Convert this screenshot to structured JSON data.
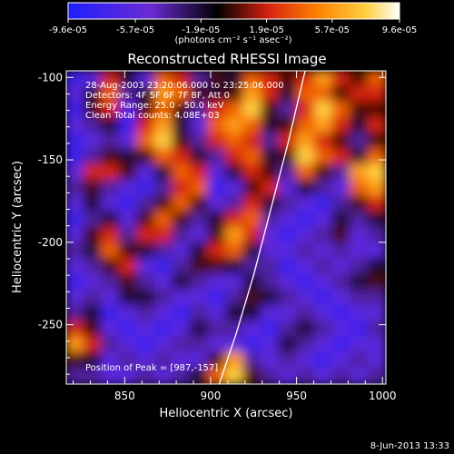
{
  "colorbar": {
    "tick_labels": [
      "-9.6e-05",
      "-5.7e-05",
      "-1.9e-05",
      "1.9e-05",
      "5.7e-05",
      "9.6e-05"
    ],
    "unit_label": "(photons cm⁻² s⁻¹ asec⁻²)"
  },
  "chart_data": {
    "type": "heatmap",
    "title": "Reconstructed RHESSI Image",
    "xlabel": "Heliocentric X (arcsec)",
    "ylabel": "Heliocentric Y (arcsec)",
    "xlim": [
      816,
      1002
    ],
    "ylim": [
      -286,
      -96
    ],
    "x_ticks": [
      850,
      900,
      950,
      1000
    ],
    "y_ticks": [
      -100,
      -150,
      -200,
      -250
    ],
    "value_range": [
      -9.6e-05,
      9.6e-05
    ],
    "colormap": "blue-purple-black-red-orange-yellow-white",
    "annotations": [
      "28-Aug-2003 23:20:06.000 to 23:25:06.000",
      "Detectors: 4F 5F 6F 7F 8F, Att 0",
      "Energy Range: 25.0 - 50.0 keV",
      "Clean    Total counts: 4.08E+03"
    ],
    "peak_label": "Position of Peak = [987,-157]",
    "limb_curve": [
      [
        905,
        -286
      ],
      [
        915,
        -255
      ],
      [
        925,
        -220
      ],
      [
        935,
        -180
      ],
      [
        945,
        -140
      ],
      [
        955,
        -96
      ]
    ],
    "intensity_map": {
      "nx": 18,
      "ny": 20,
      "values": [
        [
          0.1,
          0.2,
          0.6,
          0.4,
          0.2,
          0.7,
          0.6,
          0.3,
          0.5,
          0.4,
          0.7,
          0.6,
          0.5,
          0.6,
          0.8,
          0.6,
          0.5,
          0.7
        ],
        [
          0.2,
          0.4,
          0.7,
          0.3,
          0.4,
          0.8,
          0.7,
          0.5,
          0.4,
          0.5,
          0.8,
          0.6,
          0.4,
          0.7,
          0.7,
          0.5,
          0.6,
          0.6
        ],
        [
          0.1,
          0.5,
          0.6,
          0.2,
          0.5,
          0.7,
          0.5,
          0.3,
          0.6,
          0.7,
          0.9,
          0.5,
          0.3,
          0.6,
          0.9,
          0.7,
          0.5,
          0.5
        ],
        [
          0.2,
          0.3,
          0.4,
          0.1,
          0.6,
          0.8,
          0.4,
          0.2,
          0.7,
          0.8,
          0.7,
          0.4,
          0.5,
          0.7,
          0.8,
          0.6,
          0.4,
          0.6
        ],
        [
          0.1,
          0.2,
          0.3,
          0.2,
          0.7,
          0.9,
          0.5,
          0.3,
          0.6,
          0.7,
          0.6,
          0.3,
          0.6,
          0.8,
          0.6,
          0.5,
          0.3,
          0.5
        ],
        [
          0.1,
          0.3,
          0.5,
          0.4,
          0.5,
          0.7,
          0.6,
          0.4,
          0.3,
          0.6,
          0.7,
          0.4,
          0.5,
          0.9,
          0.7,
          0.6,
          0.4,
          0.7
        ],
        [
          0.2,
          0.6,
          0.6,
          0.5,
          0.2,
          0.4,
          0.7,
          0.6,
          0.2,
          0.4,
          0.6,
          0.5,
          0.3,
          0.7,
          0.5,
          0.3,
          0.8,
          0.9
        ],
        [
          0.3,
          0.5,
          0.3,
          0.2,
          0.1,
          0.3,
          0.6,
          0.7,
          0.1,
          0.2,
          0.5,
          0.6,
          0.2,
          0.4,
          0.3,
          0.2,
          0.7,
          0.8
        ],
        [
          0.2,
          0.4,
          0.2,
          0.1,
          0.3,
          0.5,
          0.7,
          0.5,
          0.2,
          0.3,
          0.6,
          0.4,
          0.3,
          0.2,
          0.1,
          0.3,
          0.5,
          0.6
        ],
        [
          0.1,
          0.3,
          0.4,
          0.2,
          0.5,
          0.7,
          0.5,
          0.3,
          0.4,
          0.6,
          0.7,
          0.3,
          0.2,
          0.1,
          0.2,
          0.4,
          0.3,
          0.4
        ],
        [
          0.2,
          0.5,
          0.6,
          0.3,
          0.6,
          0.6,
          0.3,
          0.2,
          0.5,
          0.8,
          0.6,
          0.2,
          0.1,
          0.2,
          0.3,
          0.5,
          0.2,
          0.3
        ],
        [
          0.3,
          0.4,
          0.7,
          0.5,
          0.4,
          0.3,
          0.2,
          0.4,
          0.6,
          0.7,
          0.4,
          0.2,
          0.2,
          0.3,
          0.2,
          0.3,
          0.2,
          0.2
        ],
        [
          0.2,
          0.3,
          0.5,
          0.6,
          0.2,
          0.1,
          0.3,
          0.5,
          0.5,
          0.4,
          0.3,
          0.3,
          0.1,
          0.2,
          0.3,
          0.2,
          0.3,
          0.4
        ],
        [
          0.1,
          0.2,
          0.3,
          0.5,
          0.3,
          0.2,
          0.4,
          0.3,
          0.2,
          0.2,
          0.4,
          0.3,
          0.2,
          0.1,
          0.2,
          0.3,
          0.4,
          0.5
        ],
        [
          0.2,
          0.3,
          0.2,
          0.4,
          0.4,
          0.3,
          0.2,
          0.2,
          0.1,
          0.3,
          0.5,
          0.4,
          0.3,
          0.2,
          0.1,
          0.2,
          0.3,
          0.3
        ],
        [
          0.3,
          0.4,
          0.1,
          0.2,
          0.3,
          0.2,
          0.1,
          0.3,
          0.2,
          0.4,
          0.4,
          0.2,
          0.2,
          0.3,
          0.2,
          0.1,
          0.2,
          0.2
        ],
        [
          0.6,
          0.5,
          0.2,
          0.1,
          0.2,
          0.1,
          0.2,
          0.4,
          0.3,
          0.3,
          0.2,
          0.1,
          0.3,
          0.4,
          0.3,
          0.2,
          0.1,
          0.3
        ],
        [
          0.8,
          0.6,
          0.3,
          0.2,
          0.1,
          0.2,
          0.3,
          0.3,
          0.2,
          0.2,
          0.1,
          0.2,
          0.4,
          0.3,
          0.2,
          0.1,
          0.2,
          0.2
        ],
        [
          0.5,
          0.4,
          0.2,
          0.3,
          0.2,
          0.3,
          0.2,
          0.2,
          0.5,
          0.8,
          0.3,
          0.2,
          0.3,
          0.2,
          0.1,
          0.2,
          0.3,
          0.2
        ],
        [
          0.3,
          0.3,
          0.2,
          0.2,
          0.3,
          0.2,
          0.3,
          0.4,
          0.7,
          0.9,
          0.5,
          0.3,
          0.2,
          0.3,
          0.2,
          0.3,
          0.2,
          0.3
        ]
      ]
    }
  },
  "footer": {
    "timestamp": "8-Jun-2013 13:33"
  }
}
